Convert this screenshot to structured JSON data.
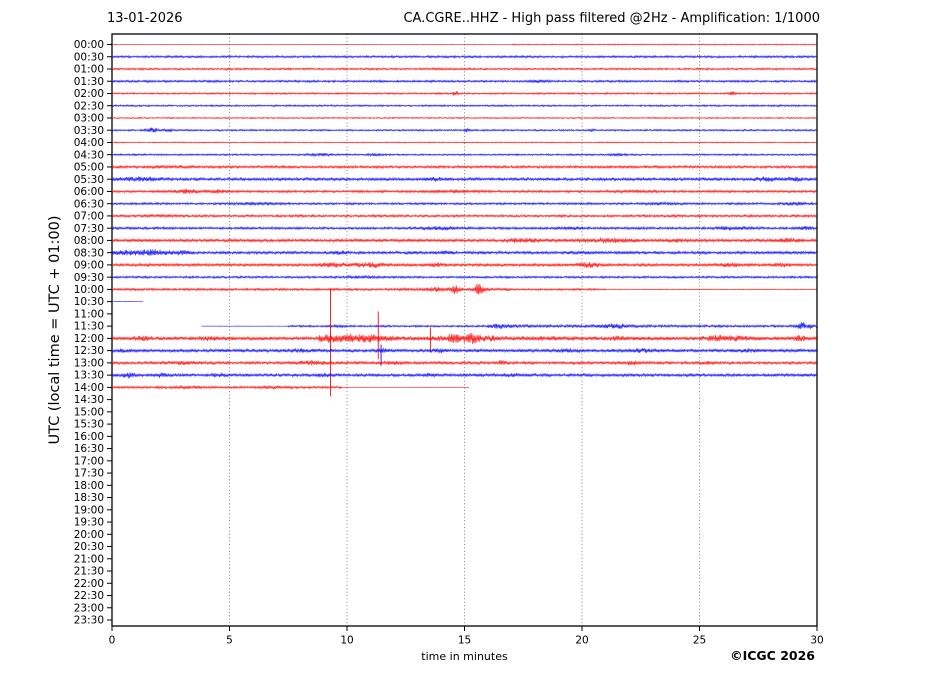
{
  "header": {
    "date": "13-01-2026",
    "title": "CA.CGRE..HHZ - High pass filtered @2Hz - Amplification: 1/1000"
  },
  "axes": {
    "ylabel": "UTC (local time = UTC + 01:00)",
    "xlabel": "time in minutes",
    "xlim": [
      0,
      30
    ],
    "x_ticks": [
      0,
      5,
      10,
      15,
      20,
      25,
      30
    ],
    "grid_minutes": [
      5,
      10,
      15,
      20,
      25
    ],
    "grid_style": "dotted-vertical"
  },
  "footer": {
    "copyright": "©ICGC 2026"
  },
  "chart_data": {
    "type": "line",
    "subtype": "helicorder-daily-seismogram, one trace row per 30 minutes, alternating colors",
    "title": "CA.CGRE..HHZ - High pass filtered @2Hz - Amplification: 1/1000",
    "date": "13-01-2026",
    "xlabel": "time in minutes",
    "ylabel": "UTC (local time = UTC + 01:00)",
    "xlim": [
      0,
      30
    ],
    "colors": {
      "trace_red": "#ff0000",
      "trace_blue": "#0000ff"
    },
    "rows": [
      {
        "label": "00:00",
        "color": "red",
        "segments": [
          [
            0,
            30
          ]
        ],
        "amp": [
          [
            0,
            17,
            0.3
          ],
          [
            17,
            30,
            0.6
          ]
        ],
        "bursts": []
      },
      {
        "label": "00:30",
        "color": "blue",
        "segments": [
          [
            0,
            30
          ]
        ],
        "amp": 1.1,
        "bursts": []
      },
      {
        "label": "01:00",
        "color": "red",
        "segments": [
          [
            0,
            30
          ]
        ],
        "amp": 1.0,
        "bursts": []
      },
      {
        "label": "01:30",
        "color": "blue",
        "segments": [
          [
            0,
            30
          ]
        ],
        "amp": 1.1,
        "bursts": [
          [
            18.2,
            0.8,
            0.4
          ]
        ]
      },
      {
        "label": "02:00",
        "color": "red",
        "segments": [
          [
            0,
            30
          ]
        ],
        "amp": 0.9,
        "bursts": [
          [
            14.6,
            2.2,
            0.12
          ],
          [
            26.4,
            1.8,
            0.1
          ]
        ]
      },
      {
        "label": "02:30",
        "color": "blue",
        "segments": [
          [
            0,
            30
          ]
        ],
        "amp": 0.9,
        "bursts": []
      },
      {
        "label": "03:00",
        "color": "red",
        "segments": [
          [
            0,
            30
          ]
        ],
        "amp": 0.7,
        "bursts": []
      },
      {
        "label": "03:30",
        "color": "blue",
        "segments": [
          [
            0,
            30
          ]
        ],
        "amp": 0.9,
        "bursts": [
          [
            1.7,
            1.8,
            0.25
          ],
          [
            2.4,
            1.2,
            0.15
          ],
          [
            15.1,
            1.2,
            0.12
          ],
          [
            20.4,
            1.0,
            0.1
          ]
        ]
      },
      {
        "label": "04:00",
        "color": "red",
        "segments": [
          [
            0,
            30
          ]
        ],
        "amp": 0.6,
        "bursts": []
      },
      {
        "label": "04:30",
        "color": "blue",
        "segments": [
          [
            0,
            30
          ]
        ],
        "amp": 0.9,
        "bursts": [
          [
            8.8,
            0.9,
            0.5
          ],
          [
            11.2,
            0.8,
            0.3
          ],
          [
            21.5,
            0.7,
            0.3
          ]
        ]
      },
      {
        "label": "05:00",
        "color": "red",
        "segments": [
          [
            0,
            30
          ]
        ],
        "amp": 1.3,
        "bursts": [
          [
            2.5,
            0.5,
            0.8
          ]
        ]
      },
      {
        "label": "05:30",
        "color": "blue",
        "segments": [
          [
            0,
            30
          ]
        ],
        "amp": 1.5,
        "bursts": [
          [
            1.2,
            1.2,
            1.0
          ],
          [
            13.7,
            1.0,
            0.4
          ],
          [
            27.8,
            1.3,
            0.5
          ],
          [
            29.0,
            1.2,
            0.4
          ]
        ]
      },
      {
        "label": "06:00",
        "color": "red",
        "segments": [
          [
            0,
            30
          ]
        ],
        "amp": 1.2,
        "bursts": [
          [
            3.2,
            1.5,
            0.5
          ],
          [
            4.5,
            1.2,
            0.4
          ],
          [
            14.5,
            0.8,
            1.0
          ],
          [
            22.0,
            0.6,
            1.0
          ]
        ]
      },
      {
        "label": "06:30",
        "color": "blue",
        "segments": [
          [
            0,
            30
          ]
        ],
        "amp": 1.1,
        "bursts": [
          [
            6.0,
            0.7,
            1.0
          ],
          [
            23.5,
            0.7,
            0.6
          ],
          [
            29.0,
            1.0,
            0.5
          ]
        ]
      },
      {
        "label": "07:00",
        "color": "red",
        "segments": [
          [
            0,
            30
          ]
        ],
        "amp": 1.2,
        "bursts": [
          [
            2.0,
            0.5,
            0.8
          ]
        ]
      },
      {
        "label": "07:30",
        "color": "blue",
        "segments": [
          [
            0,
            30
          ]
        ],
        "amp": 1.2,
        "bursts": [
          [
            14.0,
            1.0,
            0.8
          ],
          [
            19.5,
            0.8,
            0.5
          ],
          [
            26.5,
            1.2,
            0.8
          ],
          [
            29.5,
            1.4,
            0.3
          ]
        ]
      },
      {
        "label": "08:00",
        "color": "red",
        "segments": [
          [
            0,
            30
          ]
        ],
        "amp": 1.5,
        "bursts": [
          [
            17.5,
            1.3,
            0.8
          ],
          [
            21.0,
            1.5,
            1.2
          ],
          [
            24.0,
            1.0,
            0.5
          ],
          [
            28.8,
            1.2,
            0.5
          ]
        ]
      },
      {
        "label": "08:30",
        "color": "blue",
        "segments": [
          [
            0,
            30
          ]
        ],
        "amp": 1.4,
        "bursts": [
          [
            0.8,
            1.6,
            0.8
          ],
          [
            1.8,
            1.8,
            0.6
          ],
          [
            3.0,
            1.2,
            0.5
          ],
          [
            9.7,
            1.0,
            0.3
          ],
          [
            14.2,
            1.0,
            0.3
          ],
          [
            20.0,
            0.8,
            0.5
          ]
        ]
      },
      {
        "label": "09:00",
        "color": "red",
        "segments": [
          [
            0,
            30
          ]
        ],
        "amp": 1.4,
        "bursts": [
          [
            9.5,
            1.5,
            0.6
          ],
          [
            11.0,
            1.8,
            0.7
          ],
          [
            13.8,
            1.2,
            0.4
          ],
          [
            20.3,
            1.8,
            0.5
          ],
          [
            26.3,
            1.5,
            0.4
          ],
          [
            28.5,
            1.2,
            0.3
          ]
        ]
      },
      {
        "label": "09:30",
        "color": "blue",
        "segments": [
          [
            0,
            30
          ]
        ],
        "amp": 1.1,
        "bursts": [
          [
            10.5,
            0.7,
            0.6
          ]
        ]
      },
      {
        "label": "10:00",
        "color": "red",
        "segments": [
          [
            0,
            30
          ]
        ],
        "amp": [
          [
            0,
            12,
            1.2
          ],
          [
            12,
            17,
            1.5
          ],
          [
            17,
            21,
            1.0
          ],
          [
            21,
            30,
            0.45
          ]
        ],
        "bursts": [
          [
            13.8,
            1.5,
            0.3
          ],
          [
            14.6,
            3.5,
            0.2
          ],
          [
            15.6,
            5.0,
            0.18
          ]
        ]
      },
      {
        "label": "10:30",
        "color": "blue",
        "segments": [
          [
            0,
            1.35
          ]
        ],
        "amp": 0.15,
        "bursts": []
      },
      {
        "label": "11:00",
        "color": "red",
        "segments": [],
        "amp": 0,
        "bursts": []
      },
      {
        "label": "11:30",
        "color": "blue",
        "segments": [
          [
            3.8,
            30
          ]
        ],
        "amp": [
          [
            3.8,
            7.5,
            0.2
          ],
          [
            7.5,
            16,
            1.0
          ],
          [
            16,
            24,
            1.5
          ],
          [
            24,
            29,
            1.2
          ],
          [
            29,
            30,
            1.5
          ]
        ],
        "bursts": [
          [
            9.6,
            1.0,
            0.3
          ],
          [
            16.5,
            1.2,
            0.5
          ],
          [
            21.5,
            1.3,
            0.6
          ],
          [
            29.35,
            3.5,
            0.15
          ],
          [
            29.7,
            2.5,
            0.1
          ]
        ]
      },
      {
        "label": "12:00",
        "color": "red",
        "segments": [
          [
            0,
            30
          ]
        ],
        "amp": [
          [
            0,
            8.8,
            1.8
          ],
          [
            8.8,
            12,
            3.2
          ],
          [
            12,
            13.8,
            2.2
          ],
          [
            13.8,
            16.3,
            3.2
          ],
          [
            16.3,
            20,
            2.2
          ],
          [
            20,
            30,
            1.9
          ]
        ],
        "bursts": [
          [
            1.3,
            1.0,
            0.5
          ],
          [
            4.2,
            1.0,
            0.5
          ],
          [
            9.3,
            2.0,
            0.3
          ],
          [
            10.2,
            2.0,
            0.4
          ],
          [
            11.0,
            1.5,
            0.3
          ],
          [
            14.5,
            2.0,
            0.3
          ],
          [
            15.3,
            2.5,
            0.35
          ],
          [
            21.5,
            1.2,
            0.3
          ],
          [
            25.8,
            1.8,
            0.5
          ],
          [
            26.6,
            1.5,
            0.4
          ],
          [
            29.3,
            1.5,
            0.3
          ]
        ],
        "spikes": [
          [
            9.3,
            50,
            58
          ],
          [
            11.33,
            27,
            21
          ],
          [
            13.55,
            11,
            14
          ]
        ]
      },
      {
        "label": "12:30",
        "color": "blue",
        "segments": [
          [
            0,
            30
          ]
        ],
        "amp": 1.6,
        "bursts": [
          [
            0.5,
            0.8,
            0.3
          ],
          [
            8.0,
            0.8,
            0.5
          ],
          [
            11.5,
            1.5,
            0.2
          ],
          [
            13.9,
            1.2,
            0.3
          ],
          [
            19.5,
            1.0,
            0.6
          ],
          [
            22.5,
            1.0,
            0.6
          ],
          [
            27.0,
            0.8,
            0.4
          ]
        ],
        "spikes": [
          [
            11.45,
            6,
            15
          ]
        ]
      },
      {
        "label": "13:00",
        "color": "red",
        "segments": [
          [
            0,
            30
          ]
        ],
        "amp": 1.4,
        "bursts": [
          [
            3.0,
            0.8,
            0.6
          ],
          [
            8.5,
            1.6,
            0.5
          ],
          [
            12.0,
            0.8,
            0.5
          ],
          [
            16.6,
            1.5,
            0.2
          ],
          [
            22.1,
            1.3,
            0.25
          ],
          [
            25.3,
            0.8,
            0.3
          ]
        ]
      },
      {
        "label": "13:30",
        "color": "blue",
        "segments": [
          [
            0,
            30
          ]
        ],
        "amp": 1.5,
        "bursts": [
          [
            0.7,
            1.8,
            0.3
          ],
          [
            2.1,
            1.5,
            0.2
          ],
          [
            4.6,
            1.0,
            0.3
          ],
          [
            9.0,
            1.2,
            0.3
          ],
          [
            13.6,
            1.2,
            0.25
          ],
          [
            17.0,
            0.8,
            0.5
          ]
        ]
      },
      {
        "label": "14:00",
        "color": "red",
        "segments": [
          [
            0,
            15.2
          ]
        ],
        "amp": [
          [
            0,
            9.8,
            1.1
          ],
          [
            9.8,
            15.2,
            0.15
          ]
        ],
        "bursts": [
          [
            3.0,
            0.6,
            0.8
          ],
          [
            7.0,
            0.6,
            0.8
          ]
        ]
      },
      {
        "label": "14:30",
        "color": "blue",
        "segments": [],
        "amp": 0,
        "bursts": []
      },
      {
        "label": "15:00",
        "color": "red",
        "segments": [],
        "amp": 0,
        "bursts": []
      },
      {
        "label": "15:30",
        "color": "blue",
        "segments": [],
        "amp": 0,
        "bursts": []
      },
      {
        "label": "16:00",
        "color": "red",
        "segments": [],
        "amp": 0,
        "bursts": []
      },
      {
        "label": "16:30",
        "color": "blue",
        "segments": [],
        "amp": 0,
        "bursts": []
      },
      {
        "label": "17:00",
        "color": "red",
        "segments": [],
        "amp": 0,
        "bursts": []
      },
      {
        "label": "17:30",
        "color": "blue",
        "segments": [],
        "amp": 0,
        "bursts": []
      },
      {
        "label": "18:00",
        "color": "red",
        "segments": [],
        "amp": 0,
        "bursts": []
      },
      {
        "label": "18:30",
        "color": "blue",
        "segments": [],
        "amp": 0,
        "bursts": []
      },
      {
        "label": "19:00",
        "color": "red",
        "segments": [],
        "amp": 0,
        "bursts": []
      },
      {
        "label": "19:30",
        "color": "blue",
        "segments": [],
        "amp": 0,
        "bursts": []
      },
      {
        "label": "20:00",
        "color": "red",
        "segments": [],
        "amp": 0,
        "bursts": []
      },
      {
        "label": "20:30",
        "color": "blue",
        "segments": [],
        "amp": 0,
        "bursts": []
      },
      {
        "label": "21:00",
        "color": "red",
        "segments": [],
        "amp": 0,
        "bursts": []
      },
      {
        "label": "21:30",
        "color": "blue",
        "segments": [],
        "amp": 0,
        "bursts": []
      },
      {
        "label": "22:00",
        "color": "red",
        "segments": [],
        "amp": 0,
        "bursts": []
      },
      {
        "label": "22:30",
        "color": "blue",
        "segments": [],
        "amp": 0,
        "bursts": []
      },
      {
        "label": "23:00",
        "color": "red",
        "segments": [],
        "amp": 0,
        "bursts": []
      },
      {
        "label": "23:30",
        "color": "blue",
        "segments": [],
        "amp": 0,
        "bursts": []
      }
    ]
  }
}
